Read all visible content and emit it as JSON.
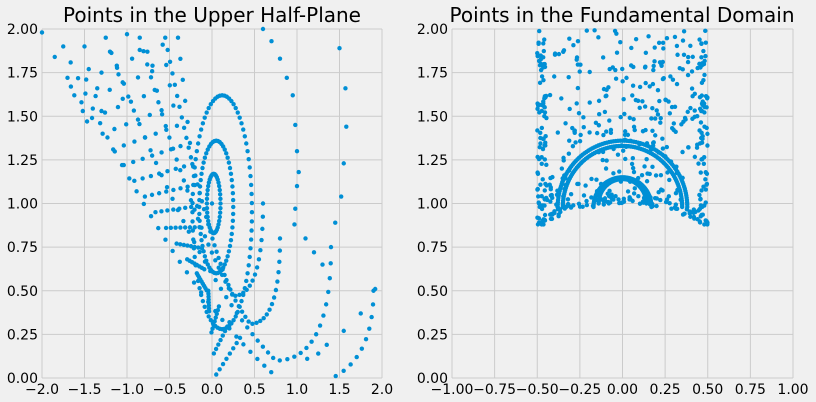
{
  "colors": {
    "background": "#f0f0f0",
    "grid": "#cbcbcb",
    "points": "#008fd5"
  },
  "chart_data": [
    {
      "type": "scatter",
      "title": "Points in the Upper Half-Plane",
      "xlabel": "",
      "ylabel": "",
      "xlim": [
        -2.0,
        2.0
      ],
      "ylim": [
        0.0,
        2.0
      ],
      "grid": true,
      "xticks": [
        "−2.0",
        "−1.5",
        "−1.0",
        "−0.5",
        "0.0",
        "0.5",
        "1.0",
        "1.5",
        "2.0"
      ],
      "yticks": [
        "0.00",
        "0.25",
        "0.50",
        "0.75",
        "1.00",
        "1.25",
        "1.50",
        "1.75",
        "2.00"
      ],
      "structure": {
        "description_of_families": "nested ellipses around (0,1) plus arcs sweeping down-left",
        "center_point": [
          0,
          1
        ],
        "ellipses": [
          {
            "cx": 0.02,
            "cy": 1.0,
            "rx": 0.08,
            "ry": 0.17
          },
          {
            "cx": 0.05,
            "cy": 0.98,
            "rx": 0.2,
            "ry": 0.38
          },
          {
            "cx": 0.12,
            "cy": 0.95,
            "rx": 0.35,
            "ry": 0.67
          }
        ],
        "arcs": [
          {
            "apex": [
              0.25,
              0.47
            ],
            "left_end": [
              -0.55,
              1.95
            ],
            "right_end": [
              0.6,
              1.0
            ]
          },
          {
            "apex": [
              0.45,
              0.31
            ],
            "left_end": [
              -0.85,
              1.95
            ],
            "right_end": [
              0.8,
              0.8
            ]
          },
          {
            "apex": [
              0.75,
              0.1
            ],
            "left_end": [
              -1.25,
              1.95
            ],
            "right_end": [
              1.4,
              0.75
            ]
          },
          {
            "apex": [
              0.9,
              -0.05
            ],
            "left_end": [
              -1.75,
              1.9
            ],
            "right_end": [
              1.9,
              0.5
            ]
          }
        ],
        "outer_right_curve": [
          [
            0.6,
            2.0
          ],
          [
            0.95,
            1.62
          ],
          [
            1.05,
            1.1
          ],
          [
            1.3,
            0.65
          ],
          [
            1.55,
            0.27
          ],
          [
            1.75,
            0.37
          ]
        ]
      }
    },
    {
      "type": "scatter",
      "title": "Points in the Fundamental Domain",
      "xlabel": "",
      "ylabel": "",
      "xlim": [
        -1.0,
        1.0
      ],
      "ylim": [
        0.0,
        2.0
      ],
      "grid": true,
      "xticks": [
        "−1.00",
        "−0.75",
        "−0.50",
        "−0.25",
        "0.00",
        "0.25",
        "0.50",
        "0.75",
        "1.00"
      ],
      "yticks": [
        "0.00",
        "0.25",
        "0.50",
        "0.75",
        "1.00",
        "1.25",
        "1.50",
        "1.75",
        "2.00"
      ],
      "structure": {
        "domain_x_range": [
          -0.5,
          0.5
        ],
        "domain_bottom_y": 0.866,
        "semicircles": [
          {
            "cx": 0.0,
            "cy": 1.0,
            "r": 0.17
          },
          {
            "cx": 0.0,
            "cy": 0.98,
            "r": 0.38
          }
        ],
        "scattered_points_region": {
          "x": [
            -0.5,
            0.5
          ],
          "y": [
            0.87,
            2.0
          ]
        }
      }
    }
  ]
}
